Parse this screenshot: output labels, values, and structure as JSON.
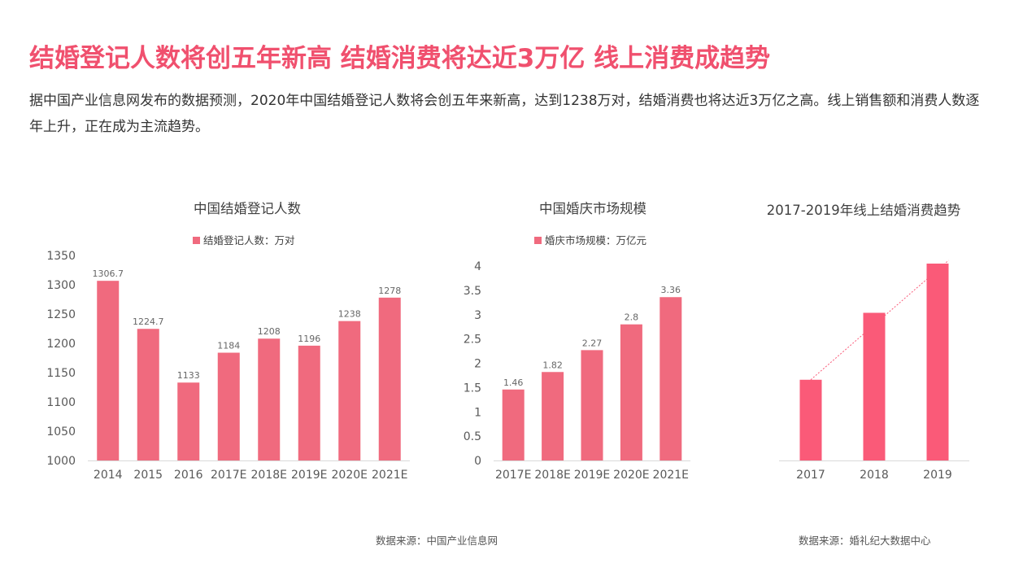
{
  "header": {
    "title": "结婚登记人数将创五年新高 结婚消费将达近3万亿 线上消费成趋势",
    "intro": "据中国产业信息网发布的数据预测，2020年中国结婚登记人数将会创五年来新高，达到1238万对，结婚消费也将达近3万亿之高。线上销售额和消费人数逐年上升，正在成为主流趋势。"
  },
  "colors": {
    "accent": "#f0506e",
    "bar": "#f06a7e",
    "bar_bright": "#fa5a78",
    "axis_text": "#595959",
    "label_text": "#666666"
  },
  "chart_data": [
    {
      "type": "bar",
      "title": "中国结婚登记人数",
      "categories": [
        "2014",
        "2015",
        "2016",
        "2017E",
        "2018E",
        "2019E",
        "2020E",
        "2021E"
      ],
      "series": [
        {
          "name": "结婚登记人数：万对",
          "values": [
            1306.7,
            1224.7,
            1133,
            1184,
            1208,
            1196,
            1238,
            1278
          ]
        }
      ],
      "data_labels": [
        "1306.7",
        "1224.7",
        "1133",
        "1184",
        "1208",
        "1196",
        "1238",
        "1278"
      ],
      "ylim": [
        1000,
        1350
      ],
      "yticks": [
        "1000",
        "1050",
        "1100",
        "1150",
        "1200",
        "1250",
        "1300",
        "1350"
      ],
      "grid": false,
      "legend": "top"
    },
    {
      "type": "bar",
      "title": "中国婚庆市场规模",
      "categories": [
        "2017E",
        "2018E",
        "2019E",
        "2020E",
        "2021E"
      ],
      "series": [
        {
          "name": "婚庆市场规模：万亿元",
          "values": [
            1.46,
            1.82,
            2.27,
            2.8,
            3.36
          ]
        }
      ],
      "data_labels": [
        "1.46",
        "1.82",
        "2.27",
        "2.8",
        "3.36"
      ],
      "ylim": [
        0,
        4
      ],
      "yticks": [
        "0",
        "0.5",
        "1",
        "1.5",
        "2",
        "2.5",
        "3",
        "3.5",
        "4"
      ],
      "grid": false,
      "legend": "top"
    },
    {
      "type": "bar",
      "title": "2017-2019年线上结婚消费趋势",
      "categories": [
        "2017",
        "2018",
        "2019"
      ],
      "series": [
        {
          "values": [
            0.41,
            0.75,
            1.0
          ]
        }
      ],
      "trendline": "dotted",
      "ylim": [
        0,
        1.0
      ],
      "grid": false
    }
  ],
  "sources": {
    "left": "数据来源：中国产业信息网",
    "right": "数据来源：婚礼纪大数据中心"
  }
}
